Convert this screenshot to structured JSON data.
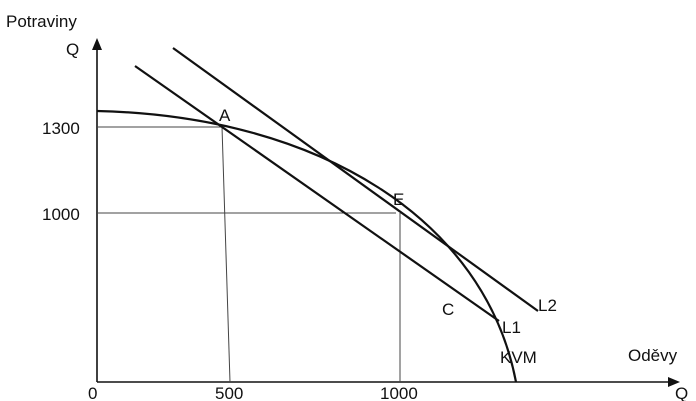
{
  "axes": {
    "y_title": "Potraviny",
    "y_symbol": "Q",
    "x_title": "Oděvy",
    "x_symbol": "Q",
    "origin": "0",
    "x_ticks": [
      "500",
      "1000"
    ],
    "y_ticks": [
      "1300",
      "1000"
    ]
  },
  "points": {
    "a": "A",
    "e": "E",
    "c": "C"
  },
  "curves": {
    "l1": "L1",
    "l2": "L2",
    "kvm": "KVM"
  },
  "colors": {
    "ink": "#111111"
  }
}
